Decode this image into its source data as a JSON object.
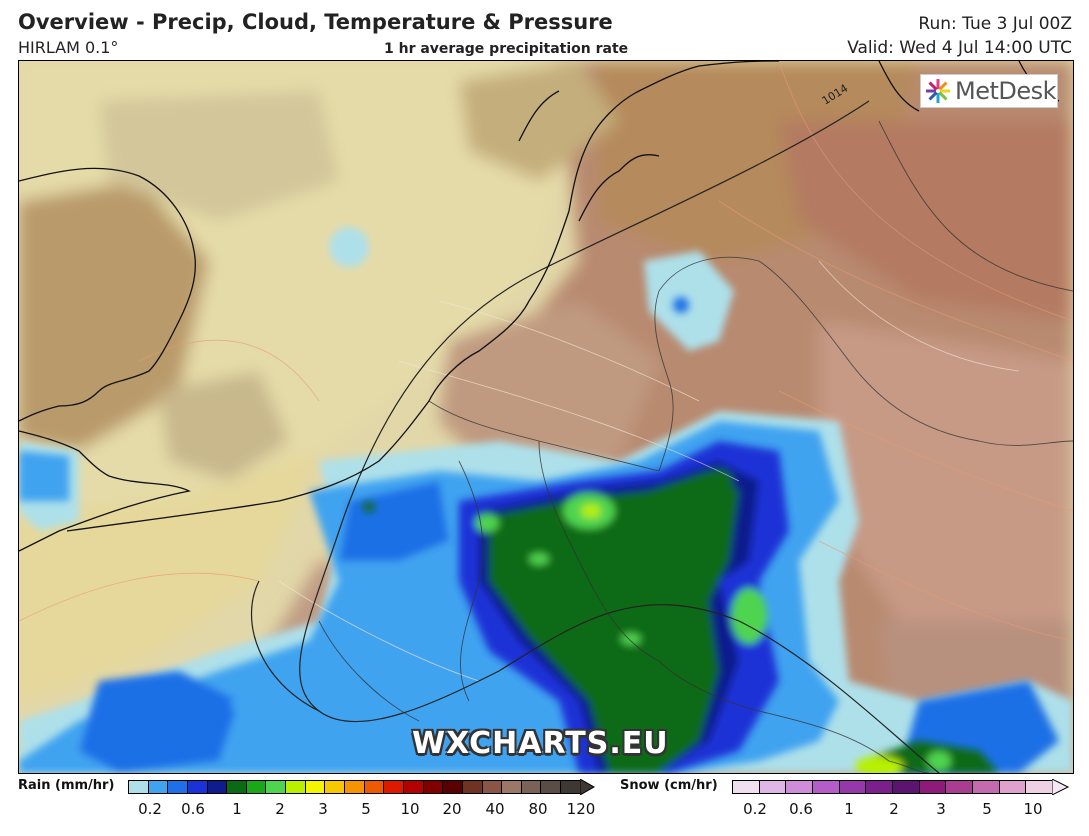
{
  "header": {
    "title": "Overview - Precip, Cloud, Temperature & Pressure",
    "model": "HIRLAM 0.1°",
    "field": "1 hr average precipitation rate",
    "run": "Run: Tue 3 Jul 00Z",
    "valid": "Valid: Wed 4 Jul 14:00 UTC"
  },
  "map": {
    "isobar_label": "1014",
    "logo": "MetDesk",
    "watermark": "WXCHARTS.EU"
  },
  "legend": {
    "rain": {
      "label": "Rain (mm/hr)",
      "colors": [
        "#aee0ea",
        "#3fa3f0",
        "#1f6fe6",
        "#1b32d6",
        "#111c8c",
        "#0b6b14",
        "#18a818",
        "#4fd44f",
        "#b8f000",
        "#f5f500",
        "#f5c800",
        "#f59400",
        "#ee5a00",
        "#dd1a00",
        "#b30000",
        "#800000",
        "#5a0000",
        "#6e3322",
        "#8a5544",
        "#9a7766",
        "#7a6256",
        "#5a4d46",
        "#3f3733"
      ],
      "ticks": [
        "0.2",
        "0.6",
        "1",
        "2",
        "3",
        "5",
        "10",
        "20",
        "40",
        "80",
        "120"
      ]
    },
    "snow": {
      "label": "Snow (cm/hr)",
      "colors": [
        "#f0dff0",
        "#e0b6e6",
        "#cf8cd9",
        "#b45cc7",
        "#9637aa",
        "#7a1f8c",
        "#5c1470",
        "#8e1a7a",
        "#a83d92",
        "#c46aae",
        "#dea2cc",
        "#eed2e4"
      ],
      "ticks": [
        "0.2",
        "0.6",
        "1",
        "2",
        "3",
        "5",
        "10"
      ]
    }
  }
}
